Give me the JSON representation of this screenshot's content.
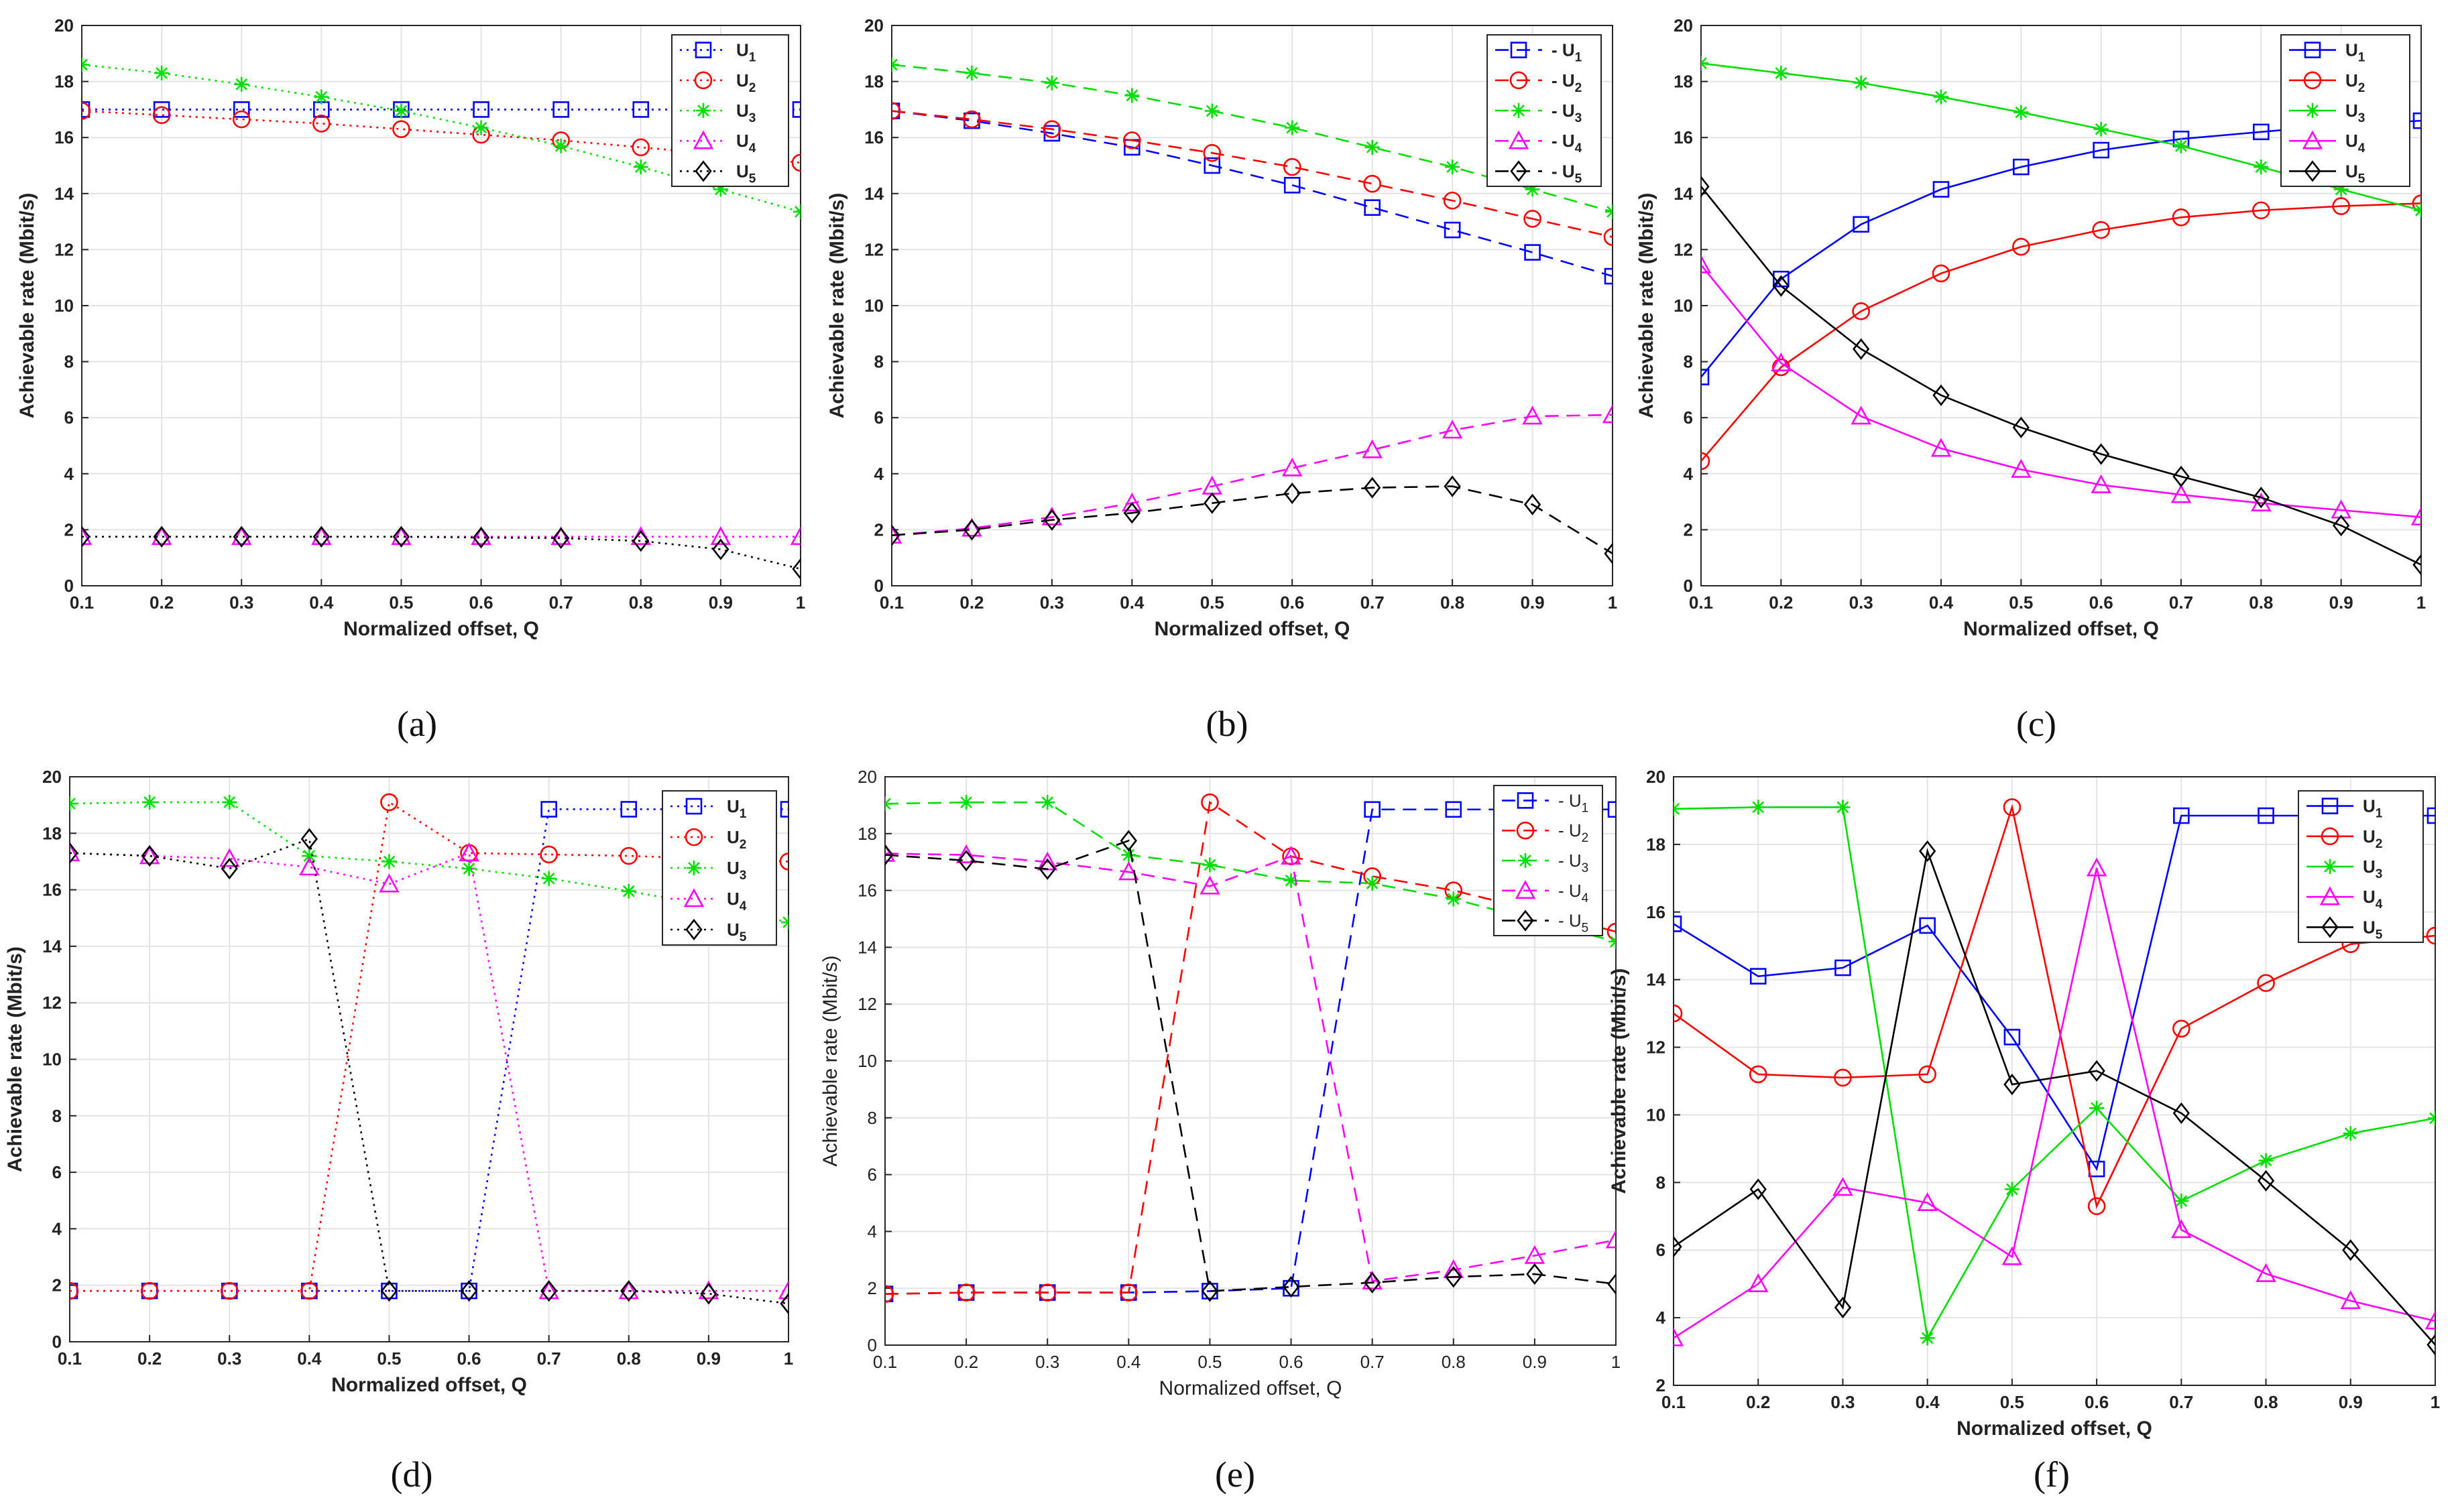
{
  "figure": {
    "panels": [
      "a",
      "b",
      "c",
      "d",
      "e",
      "f"
    ]
  },
  "colors": {
    "U1": "#0000ff",
    "U2": "#ff0000",
    "U3": "#00dd00",
    "U4": "#ff00ff",
    "U5": "#000000",
    "grid": "#e4e4e4",
    "axis": "#262626"
  },
  "markers": {
    "U1": "square",
    "U2": "circle",
    "U3": "asterisk",
    "U4": "triangle",
    "U5": "diamond"
  },
  "chart_data": [
    {
      "id": "a",
      "caption": "(a)",
      "type": "line",
      "line_style": "dotted",
      "xlabel": "Normalized offset, Q",
      "ylabel": "Achievable rate (Mbit/s)",
      "bold_labels": true,
      "x": [
        0.1,
        0.2,
        0.3,
        0.4,
        0.5,
        0.6,
        0.7,
        0.8,
        0.9,
        1
      ],
      "x_ticks": [
        "0.1",
        "0.2",
        "0.3",
        "0.4",
        "0.5",
        "0.6",
        "0.7",
        "0.8",
        "0.9",
        "1"
      ],
      "xlim": [
        0.1,
        1
      ],
      "ylim": [
        0,
        20
      ],
      "y_ticks": [
        "0",
        "2",
        "4",
        "6",
        "8",
        "10",
        "12",
        "14",
        "16",
        "18",
        "20"
      ],
      "grid": true,
      "legend": "top-right",
      "legend_style": "U",
      "series": [
        {
          "name": "U",
          "sub": "1",
          "key": "U1",
          "values": [
            17.0,
            17.0,
            17.0,
            17.0,
            17.0,
            17.0,
            17.0,
            17.0,
            17.0,
            17.0
          ]
        },
        {
          "name": "U",
          "sub": "2",
          "key": "U2",
          "values": [
            16.95,
            16.8,
            16.65,
            16.5,
            16.3,
            16.1,
            15.9,
            15.65,
            15.4,
            15.1
          ]
        },
        {
          "name": "U",
          "sub": "3",
          "key": "U3",
          "values": [
            18.6,
            18.3,
            17.9,
            17.45,
            16.95,
            16.35,
            15.7,
            14.95,
            14.15,
            13.35
          ]
        },
        {
          "name": "U",
          "sub": "4",
          "key": "U4",
          "values": [
            1.75,
            1.75,
            1.75,
            1.75,
            1.75,
            1.75,
            1.75,
            1.75,
            1.75,
            1.75
          ]
        },
        {
          "name": "U",
          "sub": "5",
          "key": "U5",
          "values": [
            1.75,
            1.75,
            1.75,
            1.75,
            1.75,
            1.72,
            1.7,
            1.6,
            1.3,
            0.6
          ]
        }
      ]
    },
    {
      "id": "b",
      "caption": "(b)",
      "type": "line",
      "line_style": "dashed",
      "xlabel": "Normalized offset, Q",
      "ylabel": "Achievable rate (Mbit/s)",
      "bold_labels": true,
      "x": [
        0.1,
        0.2,
        0.3,
        0.4,
        0.5,
        0.6,
        0.7,
        0.8,
        0.9,
        1
      ],
      "x_ticks": [
        "0.1",
        "0.2",
        "0.3",
        "0.4",
        "0.5",
        "0.6",
        "0.7",
        "0.8",
        "0.9",
        "1"
      ],
      "xlim": [
        0.1,
        1
      ],
      "ylim": [
        0,
        20
      ],
      "y_ticks": [
        "0",
        "2",
        "4",
        "6",
        "8",
        "10",
        "12",
        "14",
        "16",
        "18",
        "20"
      ],
      "grid": true,
      "legend": "top-right",
      "legend_style": "- U",
      "series": [
        {
          "name": "U",
          "sub": "1",
          "key": "U1",
          "values": [
            16.95,
            16.6,
            16.15,
            15.65,
            15.0,
            14.3,
            13.5,
            12.7,
            11.9,
            11.05
          ]
        },
        {
          "name": "U",
          "sub": "2",
          "key": "U2",
          "values": [
            16.95,
            16.65,
            16.3,
            15.9,
            15.45,
            14.95,
            14.35,
            13.75,
            13.1,
            12.45
          ]
        },
        {
          "name": "U",
          "sub": "3",
          "key": "U3",
          "values": [
            18.6,
            18.3,
            17.95,
            17.5,
            16.95,
            16.35,
            15.65,
            14.95,
            14.15,
            13.35
          ]
        },
        {
          "name": "U",
          "sub": "4",
          "key": "U4",
          "values": [
            1.8,
            2.05,
            2.45,
            2.95,
            3.55,
            4.2,
            4.85,
            5.55,
            6.05,
            6.1
          ]
        },
        {
          "name": "U",
          "sub": "5",
          "key": "U5",
          "values": [
            1.8,
            2.0,
            2.35,
            2.6,
            2.95,
            3.3,
            3.5,
            3.55,
            2.9,
            1.15
          ]
        }
      ]
    },
    {
      "id": "c",
      "caption": "(c)",
      "type": "line",
      "line_style": "solid",
      "xlabel": "Normalized offset, Q",
      "ylabel": "Achievable rate (Mbit/s)",
      "bold_labels": true,
      "x": [
        0.1,
        0.2,
        0.3,
        0.4,
        0.5,
        0.6,
        0.7,
        0.8,
        0.9,
        1
      ],
      "x_ticks": [
        "0.1",
        "0.2",
        "0.3",
        "0.4",
        "0.5",
        "0.6",
        "0.7",
        "0.8",
        "0.9",
        "1"
      ],
      "xlim": [
        0.1,
        1
      ],
      "ylim": [
        0,
        20
      ],
      "y_ticks": [
        "0",
        "2",
        "4",
        "6",
        "8",
        "10",
        "12",
        "14",
        "16",
        "18",
        "20"
      ],
      "grid": true,
      "legend": "top-right",
      "legend_style": "U",
      "series": [
        {
          "name": "U",
          "sub": "1",
          "key": "U1",
          "values": [
            7.45,
            10.95,
            12.9,
            14.15,
            14.95,
            15.55,
            15.95,
            16.2,
            16.45,
            16.6
          ]
        },
        {
          "name": "U",
          "sub": "2",
          "key": "U2",
          "values": [
            4.45,
            7.8,
            9.8,
            11.15,
            12.1,
            12.7,
            13.15,
            13.4,
            13.55,
            13.65
          ]
        },
        {
          "name": "U",
          "sub": "3",
          "key": "U3",
          "values": [
            18.65,
            18.3,
            17.95,
            17.45,
            16.9,
            16.3,
            15.7,
            14.95,
            14.15,
            13.4
          ]
        },
        {
          "name": "U",
          "sub": "4",
          "key": "U4",
          "values": [
            11.45,
            7.95,
            6.05,
            4.9,
            4.15,
            3.6,
            3.25,
            2.95,
            2.7,
            2.45
          ]
        },
        {
          "name": "U",
          "sub": "5",
          "key": "U5",
          "values": [
            14.25,
            10.7,
            8.45,
            6.8,
            5.65,
            4.7,
            3.9,
            3.15,
            2.15,
            0.75
          ]
        }
      ]
    },
    {
      "id": "d",
      "caption": "(d)",
      "type": "line",
      "line_style": "dotted",
      "xlabel": "Normalized offset, Q",
      "ylabel": "Achievable rate (Mbit/s)",
      "bold_labels": true,
      "x": [
        0.1,
        0.2,
        0.3,
        0.4,
        0.5,
        0.6,
        0.7,
        0.8,
        0.9,
        1
      ],
      "x_ticks": [
        "0.1",
        "0.2",
        "0.3",
        "0.4",
        "0.5",
        "0.6",
        "0.7",
        "0.8",
        "0.9",
        "1"
      ],
      "xlim": [
        0.1,
        1
      ],
      "ylim": [
        0,
        20
      ],
      "y_ticks": [
        "0",
        "2",
        "4",
        "6",
        "8",
        "10",
        "12",
        "14",
        "16",
        "18",
        "20"
      ],
      "grid": true,
      "legend": "top-right",
      "legend_style": "U",
      "series": [
        {
          "name": "U",
          "sub": "1",
          "key": "U1",
          "values": [
            1.8,
            1.8,
            1.8,
            1.8,
            1.8,
            1.8,
            18.85,
            18.85,
            18.85,
            18.85
          ]
        },
        {
          "name": "U",
          "sub": "2",
          "key": "U2",
          "values": [
            1.8,
            1.8,
            1.8,
            1.8,
            19.1,
            17.3,
            17.25,
            17.2,
            17.1,
            17.0
          ]
        },
        {
          "name": "U",
          "sub": "3",
          "key": "U3",
          "values": [
            19.05,
            19.1,
            19.1,
            17.2,
            17.0,
            16.75,
            16.4,
            15.95,
            15.45,
            14.85
          ]
        },
        {
          "name": "U",
          "sub": "4",
          "key": "U4",
          "values": [
            17.3,
            17.2,
            17.1,
            16.8,
            16.2,
            17.3,
            1.8,
            1.8,
            1.8,
            1.8
          ]
        },
        {
          "name": "U",
          "sub": "5",
          "key": "U5",
          "values": [
            17.3,
            17.2,
            16.75,
            17.8,
            1.8,
            1.8,
            1.8,
            1.8,
            1.7,
            1.35
          ]
        }
      ]
    },
    {
      "id": "e",
      "caption": "(e)",
      "type": "line",
      "line_style": "dashed",
      "xlabel": "Normalized offset, Q",
      "ylabel": "Achievable rate (Mbit/s)",
      "bold_labels": false,
      "x": [
        0.1,
        0.2,
        0.3,
        0.4,
        0.5,
        0.6,
        0.7,
        0.8,
        0.9,
        1
      ],
      "x_ticks": [
        "0.1",
        "0.2",
        "0.3",
        "0.4",
        "0.5",
        "0.6",
        "0.7",
        "0.8",
        "0.9",
        "1"
      ],
      "xlim": [
        0.1,
        1
      ],
      "ylim": [
        0,
        20
      ],
      "y_ticks": [
        "0",
        "2",
        "4",
        "6",
        "8",
        "10",
        "12",
        "14",
        "16",
        "18",
        "20"
      ],
      "grid": true,
      "legend": "top-right",
      "legend_style": "- U",
      "series": [
        {
          "name": "U",
          "sub": "1",
          "key": "U1",
          "values": [
            1.8,
            1.85,
            1.85,
            1.85,
            1.9,
            2.0,
            18.85,
            18.85,
            18.85,
            18.85
          ]
        },
        {
          "name": "U",
          "sub": "2",
          "key": "U2",
          "values": [
            1.8,
            1.85,
            1.85,
            1.85,
            19.1,
            17.2,
            16.5,
            16.0,
            15.3,
            14.55
          ]
        },
        {
          "name": "U",
          "sub": "3",
          "key": "U3",
          "values": [
            19.05,
            19.1,
            19.1,
            17.25,
            16.9,
            16.35,
            16.25,
            15.7,
            14.95,
            14.2
          ]
        },
        {
          "name": "U",
          "sub": "4",
          "key": "U4",
          "values": [
            17.3,
            17.25,
            17.0,
            16.65,
            16.15,
            17.2,
            2.25,
            2.65,
            3.15,
            3.7
          ]
        },
        {
          "name": "U",
          "sub": "5",
          "key": "U5",
          "values": [
            17.25,
            17.05,
            16.75,
            17.75,
            1.9,
            2.05,
            2.2,
            2.4,
            2.5,
            2.15
          ]
        }
      ]
    },
    {
      "id": "f",
      "caption": "(f)",
      "type": "line",
      "line_style": "solid",
      "xlabel": "Normalized offset, Q",
      "ylabel": "Achievable rate (Mbit/s)",
      "bold_labels": true,
      "x": [
        0.1,
        0.2,
        0.3,
        0.4,
        0.5,
        0.6,
        0.7,
        0.8,
        0.9,
        1
      ],
      "x_ticks": [
        "0.1",
        "0.2",
        "0.3",
        "0.4",
        "0.5",
        "0.6",
        "0.7",
        "0.8",
        "0.9",
        "1"
      ],
      "xlim": [
        0.1,
        1
      ],
      "ylim": [
        2,
        20
      ],
      "y_ticks": [
        "2",
        "4",
        "6",
        "8",
        "10",
        "12",
        "14",
        "16",
        "18",
        "20"
      ],
      "grid": true,
      "legend": "top-right",
      "legend_style": "U",
      "series": [
        {
          "name": "U",
          "sub": "1",
          "key": "U1",
          "values": [
            15.65,
            14.1,
            14.35,
            15.6,
            12.3,
            8.4,
            18.85,
            18.85,
            18.85,
            18.85
          ]
        },
        {
          "name": "U",
          "sub": "2",
          "key": "U2",
          "values": [
            13.0,
            11.2,
            11.1,
            11.2,
            19.1,
            7.3,
            12.55,
            13.9,
            15.05,
            15.3
          ]
        },
        {
          "name": "U",
          "sub": "3",
          "key": "U3",
          "values": [
            19.05,
            19.1,
            19.1,
            3.4,
            7.8,
            10.2,
            7.45,
            8.65,
            9.45,
            9.9
          ]
        },
        {
          "name": "U",
          "sub": "4",
          "key": "U4",
          "values": [
            3.4,
            5.0,
            7.85,
            7.4,
            5.8,
            17.3,
            6.6,
            5.3,
            4.5,
            3.9
          ]
        },
        {
          "name": "U",
          "sub": "5",
          "key": "U5",
          "values": [
            6.1,
            7.8,
            4.3,
            17.8,
            10.9,
            11.3,
            10.05,
            8.05,
            6.0,
            3.2
          ]
        }
      ]
    }
  ]
}
